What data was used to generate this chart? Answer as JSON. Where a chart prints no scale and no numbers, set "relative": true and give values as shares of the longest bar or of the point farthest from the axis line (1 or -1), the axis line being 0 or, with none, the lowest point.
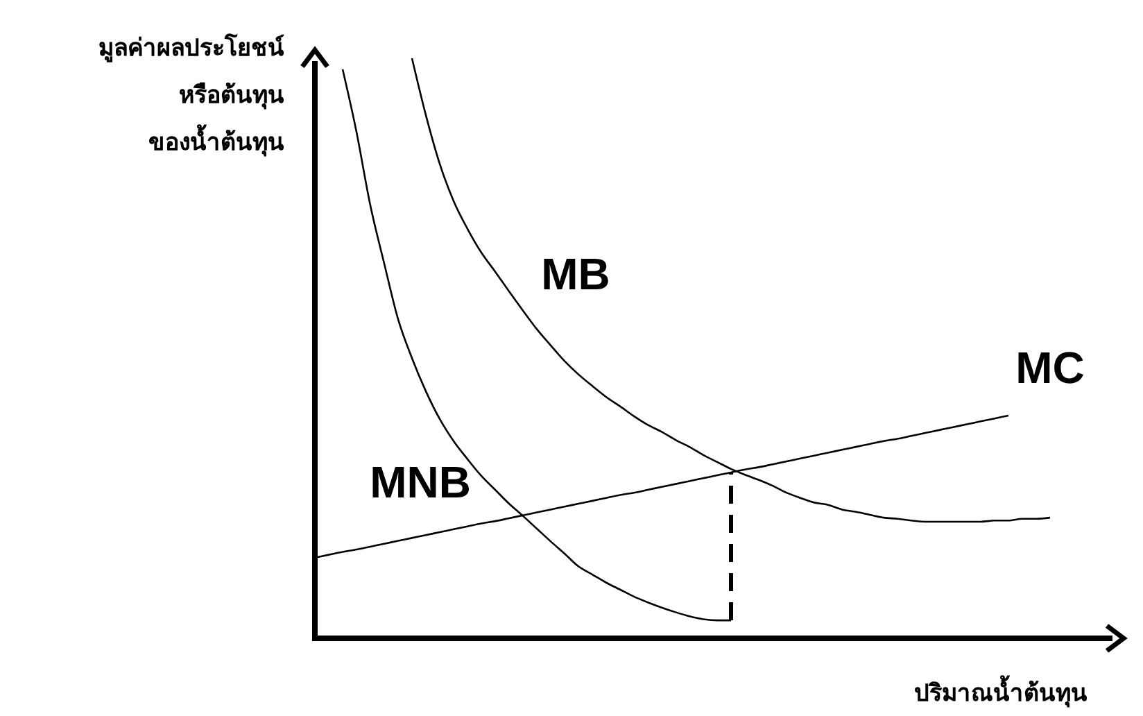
{
  "chart_data": {
    "type": "line",
    "relative": true,
    "xlabel": "ปริมาณน้ำต้นทุน",
    "ylabel": "มูลค่าผลประโยชน์\nหรือต้นทุน\nของน้ำต้นทุน",
    "marker": "none",
    "line_style": "solid",
    "categories": [
      null,
      null,
      null,
      null,
      null,
      null,
      null,
      null,
      null,
      null,
      null,
      null,
      null,
      null,
      null,
      null,
      null,
      null,
      null,
      null,
      null,
      null,
      null,
      null,
      null,
      null,
      null,
      null,
      null,
      null,
      null,
      null,
      null,
      null,
      null,
      null,
      null,
      null,
      null,
      null,
      null,
      null,
      null,
      null,
      null,
      null,
      null,
      null,
      null,
      null,
      null,
      null,
      null,
      null
    ],
    "series": [
      {
        "name": "MNB",
        "color": "#000000",
        "values": [
          null,
          null,
          0.981,
          0.873,
          0.746,
          0.646,
          0.55,
          0.483,
          0.426,
          0.378,
          0.34,
          0.309,
          0.28,
          0.256,
          0.232,
          0.211,
          0.189,
          0.167,
          0.146,
          0.124,
          0.11,
          0.096,
          0.084,
          0.072,
          0.062,
          0.053,
          0.045,
          0.038,
          0.033,
          0.031,
          0.031,
          null,
          null,
          null,
          null,
          null,
          null,
          null,
          null,
          null,
          null,
          null,
          null,
          null,
          null,
          null,
          null,
          null,
          null,
          null,
          null,
          null,
          null,
          null
        ]
      },
      {
        "name": "MB",
        "color": "#000000",
        "values": [
          null,
          null,
          null,
          null,
          null,
          null,
          null,
          1.0,
          0.902,
          0.818,
          0.754,
          0.706,
          0.665,
          0.632,
          0.598,
          0.565,
          0.533,
          0.505,
          0.478,
          0.455,
          0.435,
          0.416,
          0.4,
          0.383,
          0.368,
          0.356,
          0.342,
          0.33,
          0.316,
          0.304,
          0.292,
          0.282,
          0.273,
          0.263,
          0.251,
          0.242,
          0.234,
          0.23,
          0.222,
          0.218,
          0.213,
          0.208,
          0.206,
          0.203,
          0.201,
          0.201,
          0.201,
          0.201,
          0.201,
          0.203,
          0.203,
          0.206,
          0.206,
          0.208
        ]
      },
      {
        "name": "MC",
        "color": "#000000",
        "values": [
          0.139,
          0.144,
          0.149,
          0.153,
          0.158,
          0.163,
          0.168,
          0.173,
          0.178,
          0.183,
          0.188,
          0.193,
          0.198,
          0.202,
          0.207,
          0.212,
          0.217,
          0.222,
          0.227,
          0.232,
          0.237,
          0.242,
          0.247,
          0.251,
          0.256,
          0.261,
          0.266,
          0.271,
          0.276,
          0.281,
          0.286,
          0.291,
          0.295,
          0.3,
          0.305,
          0.31,
          0.315,
          0.32,
          0.325,
          0.33,
          0.335,
          0.34,
          0.344,
          0.349,
          0.354,
          0.359,
          0.364,
          0.369,
          0.374,
          0.379,
          0.384,
          null,
          null,
          null
        ]
      }
    ]
  }
}
